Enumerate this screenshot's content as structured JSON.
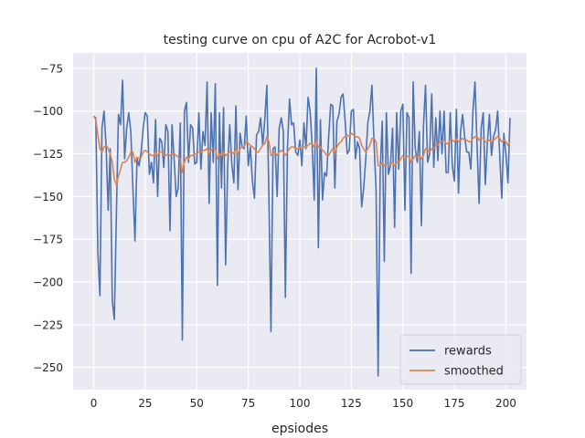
{
  "chart_data": {
    "type": "line",
    "title": "testing curve on cpu of A2C for Acrobot-v1",
    "xlabel": "epsiodes",
    "ylabel": "",
    "xlim": [
      -10,
      210
    ],
    "ylim": [
      -263,
      -66
    ],
    "x_ticks": [
      0,
      25,
      50,
      75,
      100,
      125,
      150,
      175,
      200
    ],
    "y_ticks": [
      -75,
      -100,
      -125,
      -150,
      -175,
      -200,
      -225,
      -250
    ],
    "x_tick_labels": [
      "0",
      "25",
      "50",
      "75",
      "100",
      "125",
      "150",
      "175",
      "200"
    ],
    "y_tick_labels": [
      "−75",
      "−100",
      "−125",
      "−150",
      "−175",
      "−200",
      "−225",
      "−250"
    ],
    "grid": true,
    "background": "#eaeaf2",
    "legend_position": "lower-right",
    "series": [
      {
        "name": "rewards",
        "color": "#4c72b0",
        "values": [
          -103,
          -104,
          -182,
          -208,
          -110,
          -100,
          -120,
          -158,
          -122,
          -211,
          -222,
          -160,
          -102,
          -108,
          -82,
          -128,
          -110,
          -101,
          -112,
          -145,
          -176,
          -128,
          -132,
          -124,
          -110,
          -101,
          -103,
          -137,
          -130,
          -142,
          -105,
          -150,
          -116,
          -118,
          -133,
          -108,
          -112,
          -170,
          -108,
          -128,
          -150,
          -145,
          -107,
          -234,
          -100,
          -95,
          -130,
          -108,
          -110,
          -131,
          -130,
          -101,
          -134,
          -112,
          -120,
          -83,
          -154,
          -101,
          -130,
          -84,
          -202,
          -101,
          -145,
          -98,
          -190,
          -132,
          -108,
          -131,
          -142,
          -97,
          -146,
          -113,
          -121,
          -122,
          -103,
          -132,
          -121,
          -141,
          -151,
          -114,
          -112,
          -104,
          -120,
          -105,
          -85,
          -150,
          -229,
          -122,
          -121,
          -150,
          -110,
          -104,
          -112,
          -209,
          -122,
          -93,
          -108,
          -107,
          -124,
          -126,
          -117,
          -132,
          -107,
          -122,
          -92,
          -100,
          -120,
          -152,
          -75,
          -180,
          -105,
          -152,
          -136,
          -138,
          -115,
          -96,
          -97,
          -145,
          -106,
          -102,
          -92,
          -90,
          -106,
          -125,
          -123,
          -100,
          -99,
          -128,
          -118,
          -122,
          -156,
          -145,
          -128,
          -107,
          -100,
          -85,
          -118,
          -146,
          -255,
          -135,
          -106,
          -188,
          -101,
          -137,
          -132,
          -110,
          -168,
          -101,
          -134,
          -100,
          -96,
          -158,
          -101,
          -104,
          -195,
          -83,
          -122,
          -130,
          -112,
          -167,
          -109,
          -85,
          -130,
          -125,
          -90,
          -133,
          -104,
          -129,
          -100,
          -125,
          -100,
          -136,
          -136,
          -101,
          -132,
          -141,
          -99,
          -148,
          -112,
          -102,
          -115,
          -124,
          -124,
          -134,
          -100,
          -83,
          -120,
          -154,
          -110,
          -101,
          -143,
          -119,
          -102,
          -126,
          -115,
          -111,
          -100,
          -126,
          -151,
          -113,
          -125,
          -142,
          -104
        ],
        "x_start": 0
      },
      {
        "name": "smoothed",
        "color": "#dd8452",
        "values": [
          -103,
          -105,
          -114,
          -122,
          -124,
          -121,
          -120,
          -122,
          -125,
          -130,
          -140,
          -143,
          -138,
          -134,
          -130,
          -130,
          -129,
          -127,
          -124,
          -124,
          -130,
          -127,
          -128,
          -127,
          -124,
          -123,
          -124,
          -125,
          -126,
          -126,
          -124,
          -126,
          -124,
          -124,
          -126,
          -126,
          -125,
          -126,
          -125,
          -125,
          -126,
          -127,
          -128,
          -136,
          -130,
          -127,
          -128,
          -126,
          -126,
          -125,
          -125,
          -124,
          -124,
          -123,
          -123,
          -122,
          -125,
          -123,
          -122,
          -122,
          -128,
          -125,
          -126,
          -124,
          -126,
          -125,
          -124,
          -124,
          -125,
          -122,
          -125,
          -122,
          -121,
          -121,
          -118,
          -119,
          -120,
          -121,
          -122,
          -124,
          -124,
          -122,
          -120,
          -119,
          -115,
          -118,
          -126,
          -125,
          -124,
          -126,
          -124,
          -123,
          -124,
          -126,
          -124,
          -122,
          -121,
          -121,
          -122,
          -122,
          -121,
          -122,
          -121,
          -121,
          -120,
          -119,
          -119,
          -121,
          -117,
          -121,
          -121,
          -123,
          -124,
          -126,
          -126,
          -124,
          -122,
          -124,
          -121,
          -119,
          -118,
          -116,
          -115,
          -114,
          -115,
          -113,
          -114,
          -115,
          -115,
          -116,
          -120,
          -122,
          -124,
          -122,
          -120,
          -116,
          -116,
          -118,
          -132,
          -132,
          -130,
          -132,
          -131,
          -131,
          -131,
          -130,
          -132,
          -130,
          -130,
          -128,
          -126,
          -128,
          -127,
          -126,
          -130,
          -128,
          -126,
          -127,
          -126,
          -128,
          -126,
          -122,
          -123,
          -124,
          -122,
          -122,
          -120,
          -120,
          -118,
          -118,
          -117,
          -119,
          -119,
          -117,
          -117,
          -118,
          -116,
          -118,
          -117,
          -116,
          -117,
          -117,
          -118,
          -118,
          -116,
          -115,
          -115,
          -117,
          -116,
          -116,
          -118,
          -118,
          -117,
          -118,
          -117,
          -116,
          -115,
          -116,
          -118,
          -117,
          -118,
          -120,
          -118
        ]
      }
    ]
  }
}
